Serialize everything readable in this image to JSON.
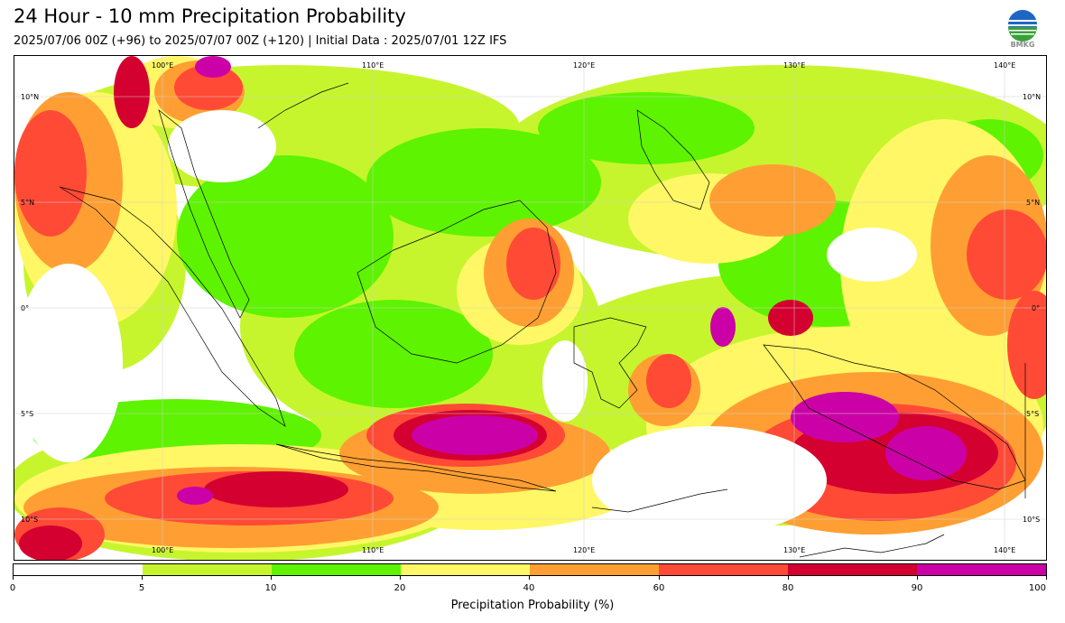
{
  "header": {
    "title": "24 Hour - 10 mm Precipitation Probability",
    "subtitle": "2025/07/06 00Z (+96) to 2025/07/07 00Z (+120) | Initial Data : 2025/07/01 12Z IFS",
    "logo_text": "BMKG"
  },
  "map": {
    "lon_labels": [
      "100°E",
      "110°E",
      "120°E",
      "130°E",
      "140°E"
    ],
    "lat_labels_left": [
      "10°N",
      "5°N",
      "0°",
      "5°S",
      "10°S"
    ],
    "lat_labels_right": [
      "10°N",
      "5°N",
      "0°",
      "5°S",
      "10°S"
    ]
  },
  "colorbar": {
    "label": "Precipitation Probability (%)",
    "ticks": [
      "0",
      "5",
      "10",
      "20",
      "40",
      "60",
      "80",
      "90",
      "100"
    ],
    "colors": [
      "#ffffff",
      "#c6f52e",
      "#5ef300",
      "#fff765",
      "#ff9f33",
      "#ff4a36",
      "#d4002f",
      "#cb00a6"
    ]
  },
  "colors": {
    "light_green": "#c6f52e",
    "green": "#5ef300",
    "yellow": "#fff765",
    "orange": "#ff9f33",
    "red": "#ff4a36",
    "crimson": "#d4002f",
    "magenta": "#cb00a6"
  }
}
